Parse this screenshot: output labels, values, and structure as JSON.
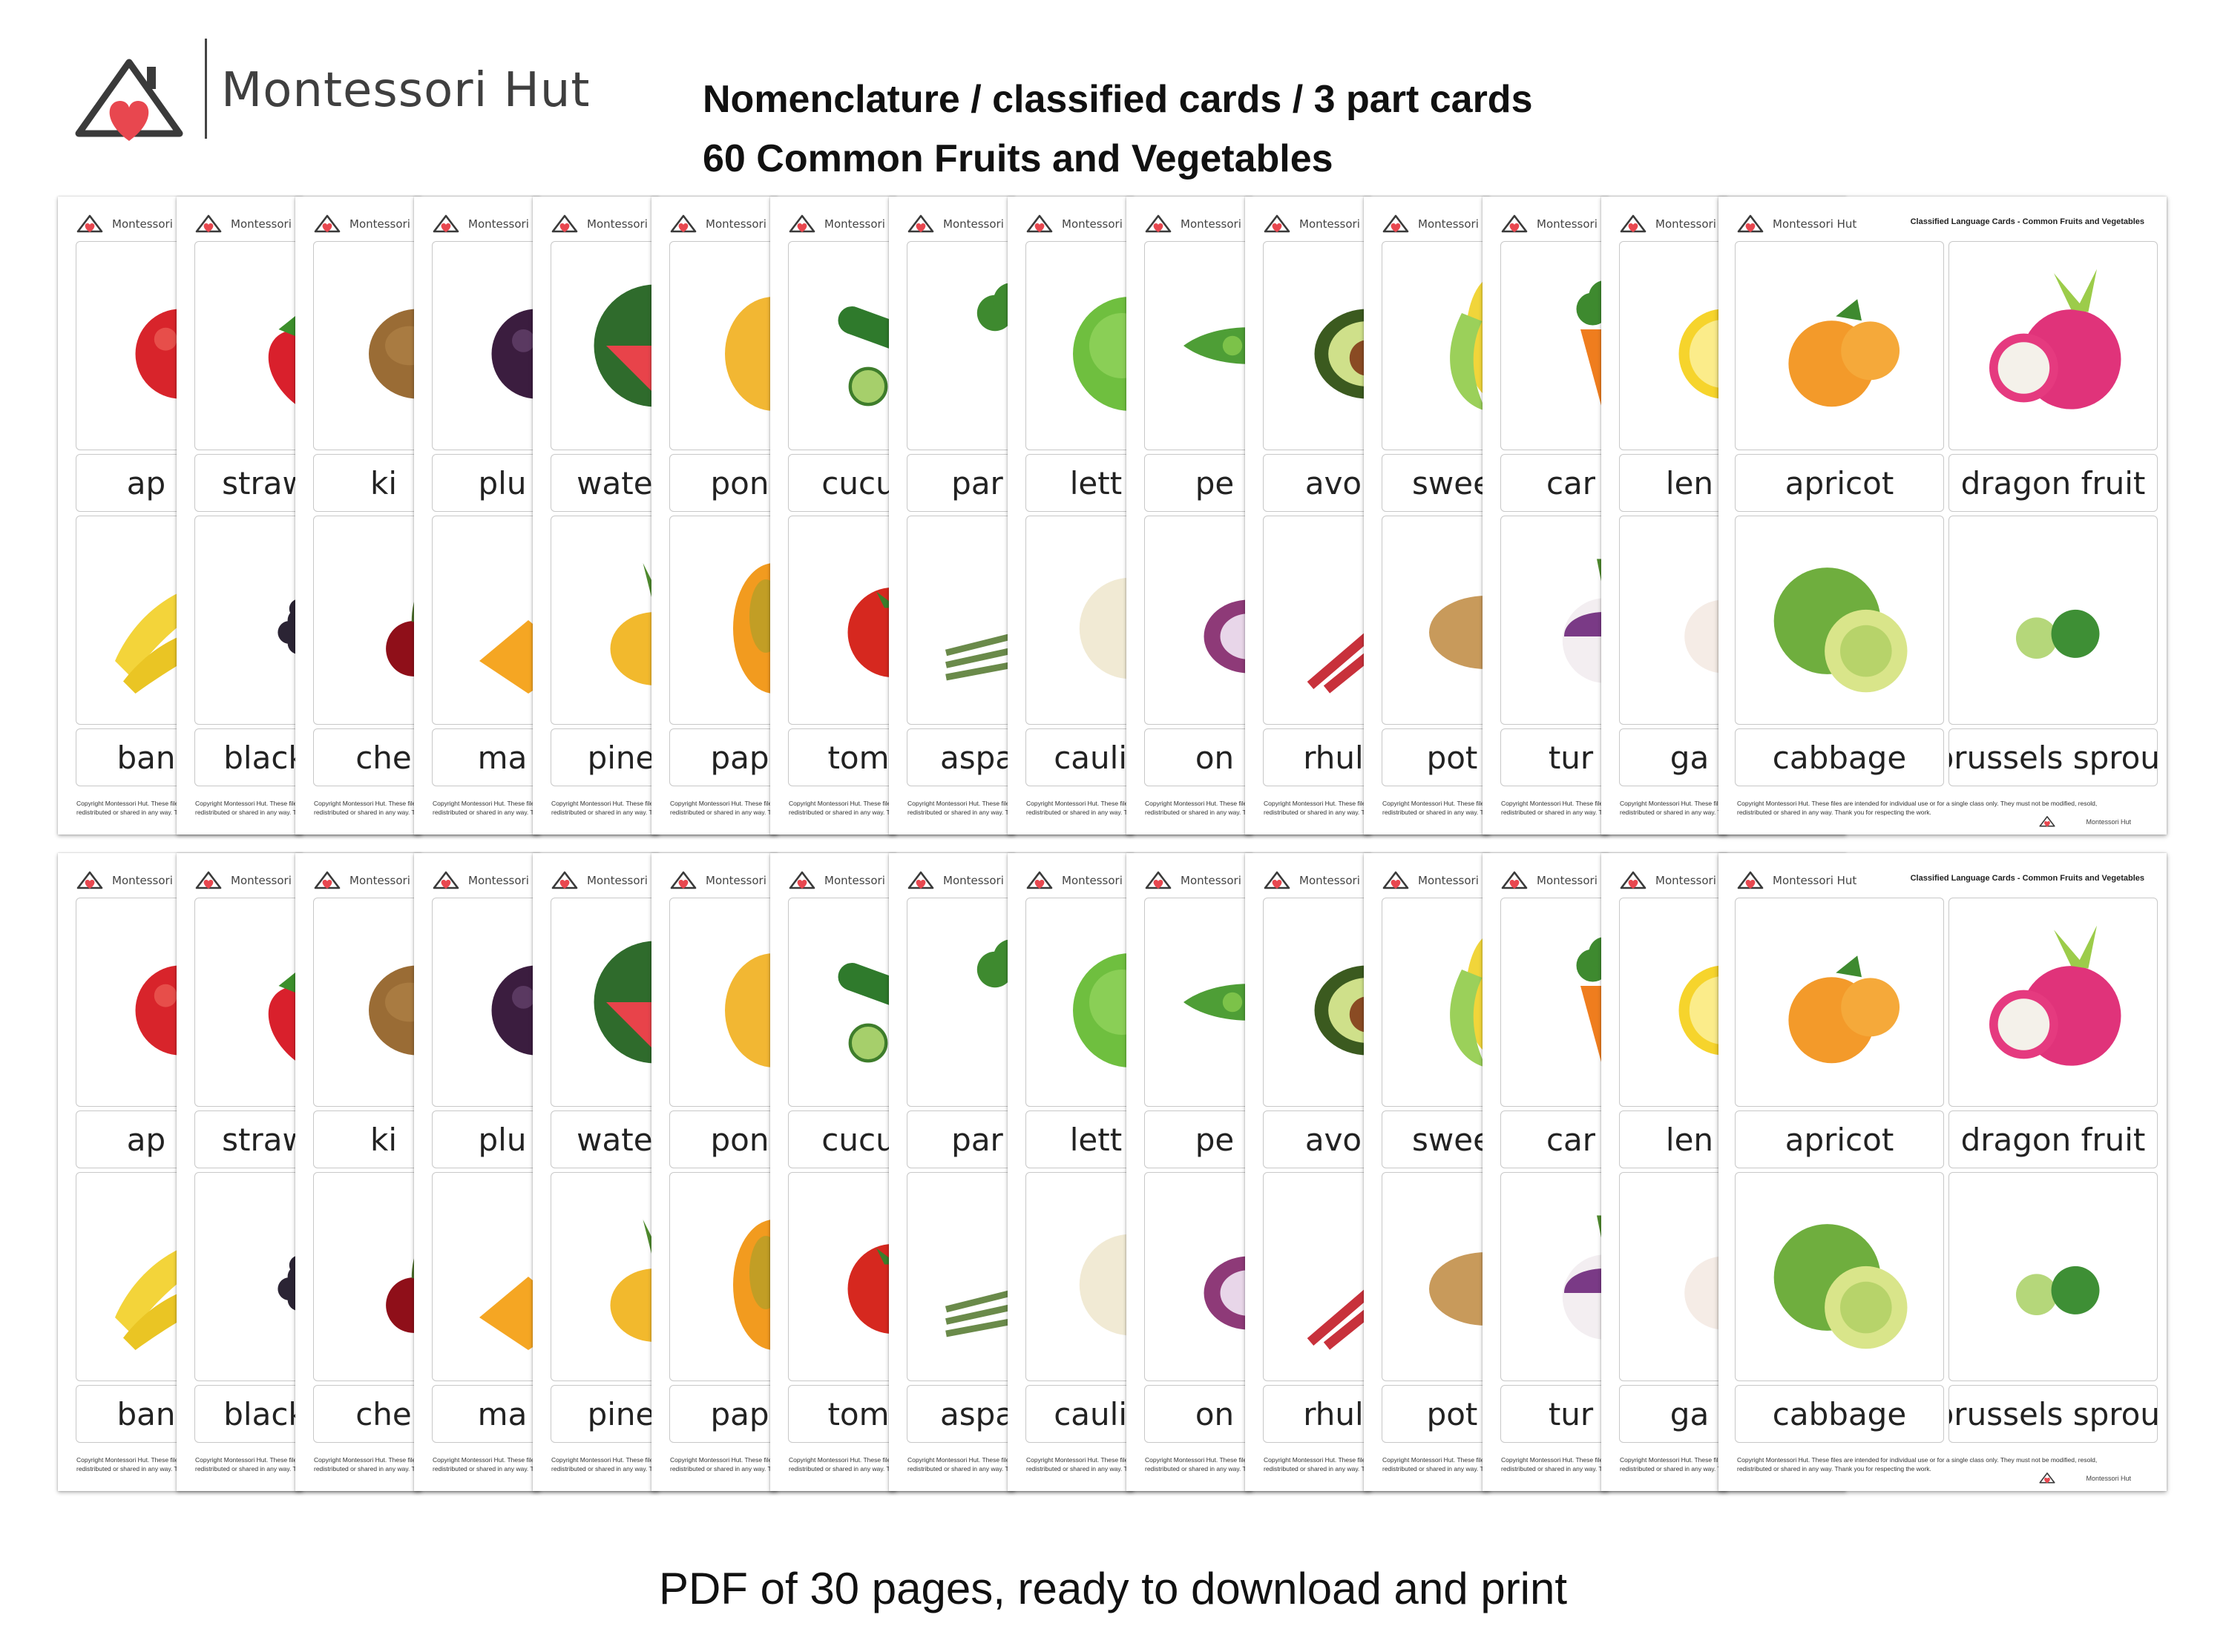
{
  "brand": {
    "name": "Montessori Hut",
    "logo_icon": "house-heart-icon",
    "heart_color": "#e8474f",
    "house_color": "#3a3a3a"
  },
  "headline": {
    "line1": "Nomenclature / classified cards / 3 part cards",
    "line2": "60 Common Fruits and Vegetables"
  },
  "sheet_header": {
    "brand": "Montessori Hut",
    "title": "Classified Language Cards - Common Fruits and Vegetables",
    "copyright_line1": "Copyright Montessori Hut.  These files are intended for individual use or for a single class only. They must not be modified, resold,",
    "copyright_line2": "redistributed or shared in any way.   Thank you for respecting the work.",
    "footer_brand": "Montessori Hut"
  },
  "sheets": [
    {
      "top": {
        "label": "ap",
        "icon": "apple-icon"
      },
      "bottom": {
        "label": "ban",
        "icon": "banana-icon"
      }
    },
    {
      "top": {
        "label": "straw",
        "icon": "strawberry-icon"
      },
      "bottom": {
        "label": "black",
        "icon": "blackberry-icon"
      }
    },
    {
      "top": {
        "label": "ki",
        "icon": "kiwi-icon"
      },
      "bottom": {
        "label": "che",
        "icon": "cherry-icon"
      }
    },
    {
      "top": {
        "label": "plu",
        "icon": "plum-icon"
      },
      "bottom": {
        "label": "ma",
        "icon": "mango-icon"
      }
    },
    {
      "top": {
        "label": "water",
        "icon": "watermelon-icon"
      },
      "bottom": {
        "label": "pine",
        "icon": "pineapple-icon"
      }
    },
    {
      "top": {
        "label": "pon",
        "icon": "pomelo-icon"
      },
      "bottom": {
        "label": "pap",
        "icon": "papaya-icon"
      }
    },
    {
      "top": {
        "label": "cucu",
        "icon": "cucumber-icon"
      },
      "bottom": {
        "label": "tom",
        "icon": "tomato-icon"
      }
    },
    {
      "top": {
        "label": "par",
        "icon": "parsley-icon"
      },
      "bottom": {
        "label": "aspa",
        "icon": "asparagus-icon"
      }
    },
    {
      "top": {
        "label": "lett",
        "icon": "lettuce-icon"
      },
      "bottom": {
        "label": "caulif",
        "icon": "cauliflower-icon"
      }
    },
    {
      "top": {
        "label": "pe",
        "icon": "pea-icon"
      },
      "bottom": {
        "label": "on",
        "icon": "onion-icon"
      }
    },
    {
      "top": {
        "label": "avo",
        "icon": "avocado-icon"
      },
      "bottom": {
        "label": "rhul",
        "icon": "rhubarb-icon"
      }
    },
    {
      "top": {
        "label": "swee",
        "icon": "sweetcorn-icon"
      },
      "bottom": {
        "label": "pot",
        "icon": "potato-icon"
      }
    },
    {
      "top": {
        "label": "car",
        "icon": "carrot-icon"
      },
      "bottom": {
        "label": "tur",
        "icon": "turnip-icon"
      }
    },
    {
      "top": {
        "label": "len",
        "icon": "lemon-icon"
      },
      "bottom": {
        "label": "ga",
        "icon": "garlic-icon"
      }
    }
  ],
  "last_sheet": {
    "cards": [
      {
        "label": "apricot",
        "icon": "apricot-icon"
      },
      {
        "label": "dragon fruit",
        "icon": "dragon-fruit-icon"
      },
      {
        "label": "cabbage",
        "icon": "cabbage-icon"
      },
      {
        "label": "brussels sprout",
        "icon": "brussels-sprout-icon"
      }
    ]
  },
  "footer": {
    "text": "PDF of 30 pages, ready to download and print"
  }
}
